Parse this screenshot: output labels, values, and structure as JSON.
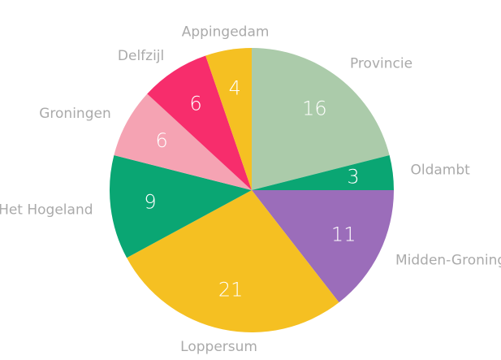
{
  "chart_data": {
    "type": "pie",
    "categories": [
      "Provincie",
      "Oldambt",
      "Midden-Groningen",
      "Loppersum",
      "Het Hogeland",
      "Groningen",
      "Delfzijl",
      "Appingedam"
    ],
    "values": [
      16,
      3,
      11,
      21,
      9,
      6,
      6,
      4
    ],
    "colors": [
      "#abcbaa",
      "#0aa673",
      "#9b6dba",
      "#f5c022",
      "#0aa673",
      "#f5a3b3",
      "#f72d6c",
      "#f5c022"
    ]
  }
}
